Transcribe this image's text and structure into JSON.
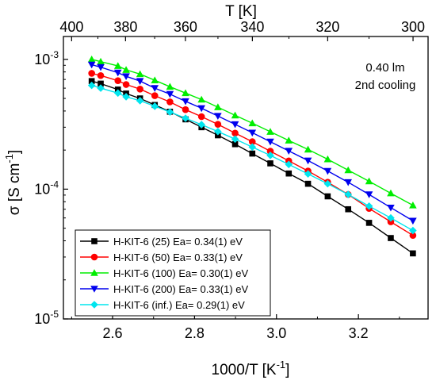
{
  "chart_data": {
    "type": "line",
    "xlabel": "1000/T [K",
    "xlabel_sup": "-1",
    "xlabel_close": "]",
    "ylabel": "σ [S cm",
    "ylabel_sup": "-1",
    "ylabel_close": "]",
    "top_label": "T [K]",
    "xlim": [
      2.48,
      3.37
    ],
    "ylim": [
      1e-05,
      0.0015
    ],
    "yscale": "log",
    "xticks": [
      2.6,
      2.8,
      3.0,
      3.2
    ],
    "xtick_labels": [
      "2.6",
      "2.8",
      "3.0",
      "3.2"
    ],
    "yticks": [
      1e-05,
      0.0001,
      0.001
    ],
    "ytick_base": "10",
    "ytick_exps": [
      "-5",
      "-4",
      "-3"
    ],
    "top_ticks": [
      400,
      380,
      360,
      340,
      320,
      300
    ],
    "top_tick_labels": [
      "400",
      "380",
      "360",
      "340",
      "320",
      "300"
    ],
    "annotation": [
      "0.40 lm",
      "2nd cooling"
    ],
    "legend_position": "bottom-left",
    "x": [
      2.549,
      2.571,
      2.613,
      2.633,
      2.667,
      2.703,
      2.74,
      2.778,
      2.817,
      2.857,
      2.899,
      2.941,
      2.985,
      3.03,
      3.077,
      3.125,
      3.175,
      3.226,
      3.279,
      3.333
    ],
    "series": [
      {
        "name": "H-KIT-6 (25) Ea= 0.34(1) eV",
        "color": "#000000",
        "marker": "square",
        "values": [
          0.00068,
          0.00065,
          0.000585,
          0.000545,
          0.0005,
          0.000445,
          0.000395,
          0.000345,
          0.0003,
          0.00026,
          0.000222,
          0.000188,
          0.000158,
          0.000132,
          0.00011,
          8.8e-05,
          7e-05,
          5.5e-05,
          4.2e-05,
          3.2e-05
        ]
      },
      {
        "name": "H-KIT-6 (50) Ea= 0.33(1) eV",
        "color": "#ff0000",
        "marker": "circle",
        "values": [
          0.00078,
          0.00075,
          0.000685,
          0.00064,
          0.00059,
          0.000525,
          0.00047,
          0.00041,
          0.000362,
          0.000316,
          0.00027,
          0.000232,
          0.000196,
          0.000165,
          0.000138,
          0.000113,
          9.1e-05,
          7.1e-05,
          5.6e-05,
          4.4e-05
        ]
      },
      {
        "name": "H-KIT-6 (100) Ea= 0.30(1) eV",
        "color": "#00ee00",
        "marker": "triangle-up",
        "values": [
          0.001,
          0.00096,
          0.00089,
          0.00083,
          0.00077,
          0.00069,
          0.000615,
          0.00055,
          0.00049,
          0.000428,
          0.00037,
          0.000322,
          0.000277,
          0.000237,
          0.000202,
          0.00017,
          0.00014,
          0.000115,
          9.3e-05,
          7.5e-05
        ]
      },
      {
        "name": "H-KIT-6 (200) Ea= 0.33(1) eV",
        "color": "#0000ee",
        "marker": "triangle-down",
        "values": [
          0.00091,
          0.00087,
          0.00079,
          0.00074,
          0.00068,
          0.0006,
          0.00054,
          0.000475,
          0.00042,
          0.000366,
          0.000316,
          0.000272,
          0.000232,
          0.000197,
          0.000166,
          0.000138,
          0.000113,
          9.1e-05,
          7.2e-05,
          5.7e-05
        ]
      },
      {
        "name": "H-KIT-6 (inf.) Ea= 0.29(1) eV",
        "color": "#00e5ee",
        "marker": "diamond",
        "values": [
          0.00063,
          0.0006,
          0.00055,
          0.000515,
          0.00048,
          0.000435,
          0.000393,
          0.000352,
          0.000314,
          0.000278,
          0.000243,
          0.000211,
          0.000182,
          0.000155,
          0.000131,
          0.00011,
          9.1e-05,
          7.4e-05,
          6e-05,
          4.8e-05
        ]
      }
    ]
  }
}
